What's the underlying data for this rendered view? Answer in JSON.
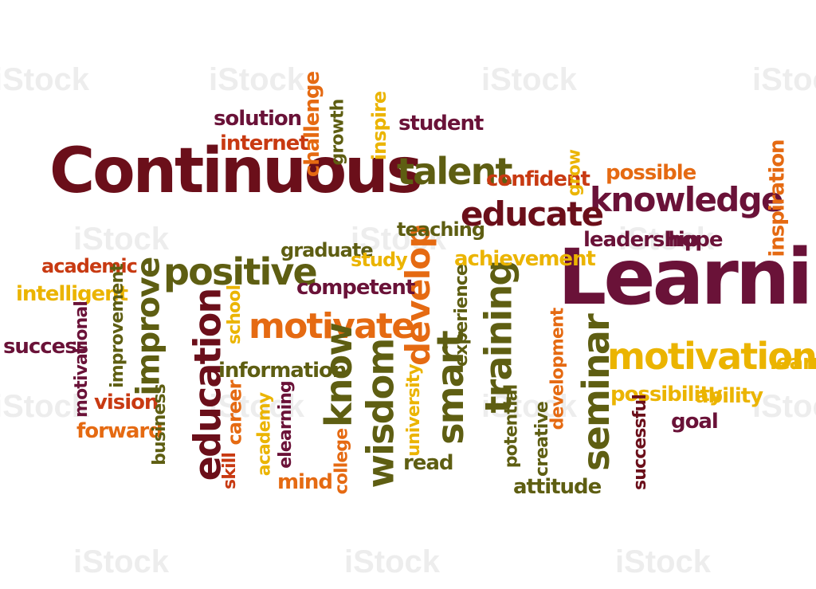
{
  "palette": {
    "maroon": "#6b0f1a",
    "plum": "#6a1238",
    "olive": "#5e5e12",
    "orange": "#e56a12",
    "gold": "#ebb400",
    "red": "#c83a12"
  },
  "watermark": {
    "text": "iStock"
  },
  "words": [
    {
      "text": "Continuous",
      "color": "maroon"
    },
    {
      "text": "Learning",
      "color": "plum"
    },
    {
      "text": "knowledge",
      "color": "plum"
    },
    {
      "text": "educate",
      "color": "maroon"
    },
    {
      "text": "talent",
      "color": "olive"
    },
    {
      "text": "motivation",
      "color": "gold"
    },
    {
      "text": "positive",
      "color": "olive"
    },
    {
      "text": "motivate",
      "color": "orange"
    },
    {
      "text": "education",
      "color": "maroon"
    },
    {
      "text": "improve",
      "color": "olive"
    },
    {
      "text": "know",
      "color": "olive"
    },
    {
      "text": "wisdom",
      "color": "olive"
    },
    {
      "text": "develop",
      "color": "orange"
    },
    {
      "text": "smart",
      "color": "olive"
    },
    {
      "text": "training",
      "color": "olive"
    },
    {
      "text": "seminar",
      "color": "olive"
    },
    {
      "text": "solution",
      "color": "plum"
    },
    {
      "text": "internet",
      "color": "red"
    },
    {
      "text": "challenge",
      "color": "orange"
    },
    {
      "text": "growth",
      "color": "olive"
    },
    {
      "text": "inspire",
      "color": "gold"
    },
    {
      "text": "student",
      "color": "plum"
    },
    {
      "text": "confident",
      "color": "red"
    },
    {
      "text": "grow",
      "color": "gold"
    },
    {
      "text": "possible",
      "color": "orange"
    },
    {
      "text": "inspiration",
      "color": "orange"
    },
    {
      "text": "teaching",
      "color": "olive"
    },
    {
      "text": "leadership",
      "color": "plum"
    },
    {
      "text": "hope",
      "color": "plum"
    },
    {
      "text": "graduate",
      "color": "olive"
    },
    {
      "text": "study",
      "color": "gold"
    },
    {
      "text": "achievement",
      "color": "gold"
    },
    {
      "text": "academic",
      "color": "red"
    },
    {
      "text": "intelligent",
      "color": "gold"
    },
    {
      "text": "competent",
      "color": "plum"
    },
    {
      "text": "experience",
      "color": "olive"
    },
    {
      "text": "success",
      "color": "plum"
    },
    {
      "text": "motivational",
      "color": "plum"
    },
    {
      "text": "improvement",
      "color": "olive"
    },
    {
      "text": "school",
      "color": "gold"
    },
    {
      "text": "information",
      "color": "olive"
    },
    {
      "text": "development",
      "color": "orange"
    },
    {
      "text": "learn",
      "color": "gold"
    },
    {
      "text": "vision",
      "color": "red"
    },
    {
      "text": "forward",
      "color": "orange"
    },
    {
      "text": "business",
      "color": "olive"
    },
    {
      "text": "career",
      "color": "orange"
    },
    {
      "text": "academy",
      "color": "gold"
    },
    {
      "text": "elearning",
      "color": "plum"
    },
    {
      "text": "skill",
      "color": "red"
    },
    {
      "text": "college",
      "color": "orange"
    },
    {
      "text": "mind",
      "color": "orange"
    },
    {
      "text": "university",
      "color": "gold"
    },
    {
      "text": "read",
      "color": "olive"
    },
    {
      "text": "potential",
      "color": "olive"
    },
    {
      "text": "creative",
      "color": "olive"
    },
    {
      "text": "attitude",
      "color": "olive"
    },
    {
      "text": "possibility",
      "color": "gold"
    },
    {
      "text": "ability",
      "color": "gold"
    },
    {
      "text": "goal",
      "color": "plum"
    },
    {
      "text": "successful",
      "color": "maroon"
    }
  ]
}
